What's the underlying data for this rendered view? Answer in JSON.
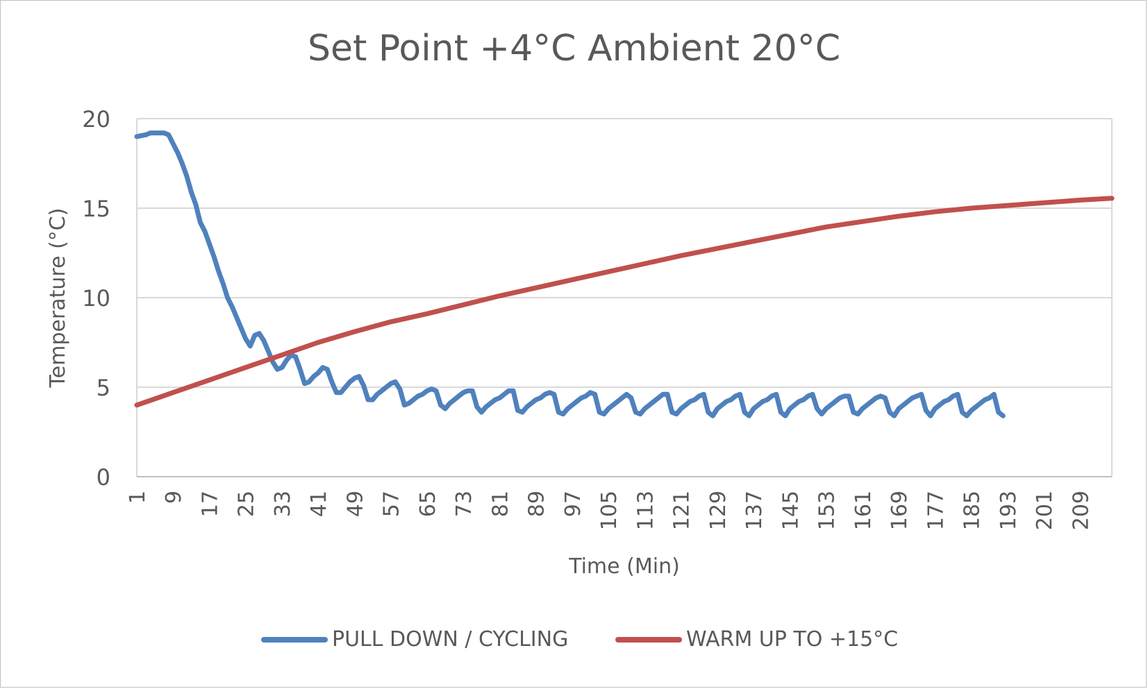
{
  "chart_data": {
    "type": "line",
    "title": "Set Point +4°C Ambient 20°C",
    "xlabel": "Time (Min)",
    "ylabel": "Temperature (°C)",
    "ylim": [
      0,
      20
    ],
    "yticks": [
      0,
      5,
      10,
      15,
      20
    ],
    "xlim": [
      1,
      216
    ],
    "xticks": [
      1,
      9,
      17,
      25,
      33,
      41,
      49,
      57,
      65,
      73,
      81,
      89,
      97,
      105,
      113,
      121,
      129,
      137,
      145,
      153,
      161,
      169,
      177,
      185,
      193,
      201,
      209
    ],
    "grid": "horizontal",
    "legend_position": "bottom",
    "series": [
      {
        "name": "PULL DOWN / CYCLING",
        "color": "#4f81bd",
        "points": [
          [
            1,
            19.0
          ],
          [
            3,
            19.1
          ],
          [
            4,
            19.2
          ],
          [
            7,
            19.2
          ],
          [
            8,
            19.1
          ],
          [
            9,
            18.6
          ],
          [
            10,
            18.1
          ],
          [
            11,
            17.5
          ],
          [
            12,
            16.8
          ],
          [
            13,
            15.9
          ],
          [
            14,
            15.2
          ],
          [
            15,
            14.2
          ],
          [
            16,
            13.7
          ],
          [
            17,
            13.0
          ],
          [
            18,
            12.3
          ],
          [
            19,
            11.5
          ],
          [
            20,
            10.8
          ],
          [
            21,
            10.0
          ],
          [
            22,
            9.5
          ],
          [
            23,
            8.9
          ],
          [
            24,
            8.3
          ],
          [
            25,
            7.7
          ],
          [
            26,
            7.3
          ],
          [
            27,
            7.9
          ],
          [
            28,
            8.0
          ],
          [
            29,
            7.6
          ],
          [
            30,
            7.0
          ],
          [
            31,
            6.4
          ],
          [
            32,
            6.0
          ],
          [
            33,
            6.1
          ],
          [
            34,
            6.5
          ],
          [
            35,
            6.8
          ],
          [
            36,
            6.7
          ],
          [
            37,
            6.0
          ],
          [
            38,
            5.2
          ],
          [
            39,
            5.3
          ],
          [
            40,
            5.6
          ],
          [
            41,
            5.8
          ],
          [
            42,
            6.1
          ],
          [
            43,
            6.0
          ],
          [
            44,
            5.3
          ],
          [
            45,
            4.7
          ],
          [
            46,
            4.7
          ],
          [
            47,
            5.0
          ],
          [
            48,
            5.3
          ],
          [
            49,
            5.5
          ],
          [
            50,
            5.6
          ],
          [
            51,
            5.1
          ],
          [
            52,
            4.3
          ],
          [
            53,
            4.3
          ],
          [
            54,
            4.6
          ],
          [
            55,
            4.8
          ],
          [
            56,
            5.0
          ],
          [
            57,
            5.2
          ],
          [
            58,
            5.3
          ],
          [
            59,
            4.9
          ],
          [
            60,
            4.0
          ],
          [
            61,
            4.1
          ],
          [
            62,
            4.3
          ],
          [
            63,
            4.5
          ],
          [
            64,
            4.6
          ],
          [
            65,
            4.8
          ],
          [
            66,
            4.9
          ],
          [
            67,
            4.8
          ],
          [
            68,
            4.0
          ],
          [
            69,
            3.8
          ],
          [
            70,
            4.1
          ],
          [
            71,
            4.3
          ],
          [
            72,
            4.5
          ],
          [
            73,
            4.7
          ],
          [
            74,
            4.8
          ],
          [
            75,
            4.8
          ],
          [
            76,
            3.9
          ],
          [
            77,
            3.6
          ],
          [
            78,
            3.9
          ],
          [
            79,
            4.1
          ],
          [
            80,
            4.3
          ],
          [
            81,
            4.4
          ],
          [
            82,
            4.6
          ],
          [
            83,
            4.8
          ],
          [
            84,
            4.8
          ],
          [
            85,
            3.7
          ],
          [
            86,
            3.6
          ],
          [
            87,
            3.9
          ],
          [
            88,
            4.1
          ],
          [
            89,
            4.3
          ],
          [
            90,
            4.4
          ],
          [
            91,
            4.6
          ],
          [
            92,
            4.7
          ],
          [
            93,
            4.6
          ],
          [
            94,
            3.6
          ],
          [
            95,
            3.5
          ],
          [
            96,
            3.8
          ],
          [
            97,
            4.0
          ],
          [
            98,
            4.2
          ],
          [
            99,
            4.4
          ],
          [
            100,
            4.5
          ],
          [
            101,
            4.7
          ],
          [
            102,
            4.6
          ],
          [
            103,
            3.6
          ],
          [
            104,
            3.5
          ],
          [
            105,
            3.8
          ],
          [
            106,
            4.0
          ],
          [
            107,
            4.2
          ],
          [
            108,
            4.4
          ],
          [
            109,
            4.6
          ],
          [
            110,
            4.4
          ],
          [
            111,
            3.6
          ],
          [
            112,
            3.5
          ],
          [
            113,
            3.8
          ],
          [
            114,
            4.0
          ],
          [
            115,
            4.2
          ],
          [
            116,
            4.4
          ],
          [
            117,
            4.6
          ],
          [
            118,
            4.6
          ],
          [
            119,
            3.6
          ],
          [
            120,
            3.5
          ],
          [
            121,
            3.8
          ],
          [
            122,
            4.0
          ],
          [
            123,
            4.2
          ],
          [
            124,
            4.3
          ],
          [
            125,
            4.5
          ],
          [
            126,
            4.6
          ],
          [
            127,
            3.6
          ],
          [
            128,
            3.4
          ],
          [
            129,
            3.8
          ],
          [
            130,
            4.0
          ],
          [
            131,
            4.2
          ],
          [
            132,
            4.3
          ],
          [
            133,
            4.5
          ],
          [
            134,
            4.6
          ],
          [
            135,
            3.6
          ],
          [
            136,
            3.4
          ],
          [
            137,
            3.8
          ],
          [
            138,
            4.0
          ],
          [
            139,
            4.2
          ],
          [
            140,
            4.3
          ],
          [
            141,
            4.5
          ],
          [
            142,
            4.6
          ],
          [
            143,
            3.6
          ],
          [
            144,
            3.4
          ],
          [
            145,
            3.8
          ],
          [
            146,
            4.0
          ],
          [
            147,
            4.2
          ],
          [
            148,
            4.3
          ],
          [
            149,
            4.5
          ],
          [
            150,
            4.6
          ],
          [
            151,
            3.8
          ],
          [
            152,
            3.5
          ],
          [
            153,
            3.8
          ],
          [
            154,
            4.0
          ],
          [
            155,
            4.2
          ],
          [
            156,
            4.4
          ],
          [
            157,
            4.5
          ],
          [
            158,
            4.5
          ],
          [
            159,
            3.6
          ],
          [
            160,
            3.5
          ],
          [
            161,
            3.8
          ],
          [
            162,
            4.0
          ],
          [
            163,
            4.2
          ],
          [
            164,
            4.4
          ],
          [
            165,
            4.5
          ],
          [
            166,
            4.4
          ],
          [
            167,
            3.6
          ],
          [
            168,
            3.4
          ],
          [
            169,
            3.8
          ],
          [
            170,
            4.0
          ],
          [
            171,
            4.2
          ],
          [
            172,
            4.4
          ],
          [
            173,
            4.5
          ],
          [
            174,
            4.6
          ],
          [
            175,
            3.7
          ],
          [
            176,
            3.4
          ],
          [
            177,
            3.8
          ],
          [
            178,
            4.0
          ],
          [
            179,
            4.2
          ],
          [
            180,
            4.3
          ],
          [
            181,
            4.5
          ],
          [
            182,
            4.6
          ],
          [
            183,
            3.6
          ],
          [
            184,
            3.4
          ],
          [
            185,
            3.7
          ],
          [
            186,
            3.9
          ],
          [
            187,
            4.1
          ],
          [
            188,
            4.3
          ],
          [
            189,
            4.4
          ],
          [
            190,
            4.6
          ],
          [
            191,
            3.6
          ],
          [
            192,
            3.4
          ]
        ]
      },
      {
        "name": "WARM UP TO +15°C",
        "color": "#c0504d",
        "points": [
          [
            1,
            4.0
          ],
          [
            5,
            4.35
          ],
          [
            9,
            4.7
          ],
          [
            17,
            5.4
          ],
          [
            25,
            6.1
          ],
          [
            33,
            6.8
          ],
          [
            41,
            7.5
          ],
          [
            49,
            8.1
          ],
          [
            57,
            8.65
          ],
          [
            65,
            9.1
          ],
          [
            73,
            9.6
          ],
          [
            81,
            10.1
          ],
          [
            89,
            10.55
          ],
          [
            97,
            11.0
          ],
          [
            105,
            11.45
          ],
          [
            113,
            11.9
          ],
          [
            121,
            12.35
          ],
          [
            129,
            12.75
          ],
          [
            137,
            13.15
          ],
          [
            145,
            13.55
          ],
          [
            153,
            13.95
          ],
          [
            161,
            14.25
          ],
          [
            169,
            14.55
          ],
          [
            177,
            14.8
          ],
          [
            185,
            15.0
          ],
          [
            193,
            15.15
          ],
          [
            201,
            15.3
          ],
          [
            209,
            15.45
          ],
          [
            216,
            15.55
          ]
        ]
      }
    ]
  }
}
